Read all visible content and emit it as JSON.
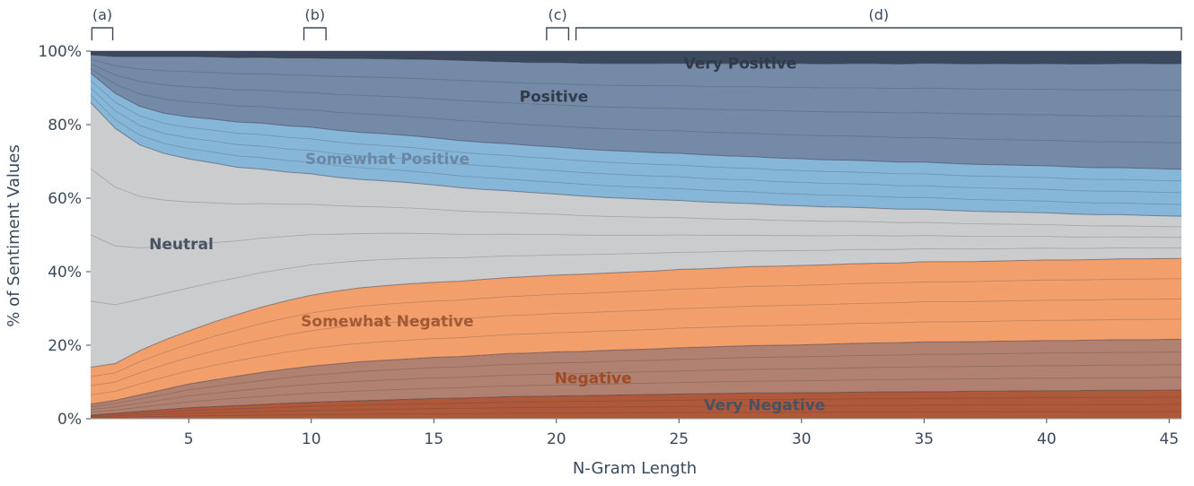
{
  "chart_data": {
    "type": "area",
    "stacked": true,
    "normalized": true,
    "xlabel": "N-Gram Length",
    "ylabel": "% of Sentiment Values",
    "x_ticks": [
      5,
      10,
      15,
      20,
      25,
      30,
      35,
      40,
      45
    ],
    "y_ticks": [
      "0%",
      "20%",
      "40%",
      "60%",
      "80%",
      "100%"
    ],
    "xlim": [
      1,
      45.5
    ],
    "ylim": [
      0,
      100
    ],
    "x": [
      1,
      2,
      3,
      4,
      5,
      6,
      7,
      8,
      9,
      10,
      11,
      12,
      13,
      14,
      15,
      16,
      17,
      18,
      19,
      20,
      21,
      22,
      23,
      24,
      25,
      26,
      27,
      28,
      29,
      30,
      31,
      32,
      33,
      34,
      35,
      36,
      37,
      38,
      39,
      40,
      41,
      42,
      43,
      44,
      45,
      45.5
    ],
    "series": [
      {
        "name": "Very Negative",
        "color": "#b0583a",
        "label_color": "#4a5160",
        "values": [
          1,
          1.5,
          2,
          2.5,
          3,
          3.3,
          3.6,
          3.9,
          4.2,
          4.5,
          4.7,
          4.9,
          5.1,
          5.3,
          5.5,
          5.6,
          5.8,
          6,
          6.1,
          6.2,
          6.3,
          6.4,
          6.5,
          6.6,
          6.7,
          6.8,
          6.9,
          7,
          7,
          7.1,
          7.1,
          7.2,
          7.3,
          7.3,
          7.4,
          7.4,
          7.5,
          7.5,
          7.6,
          7.6,
          7.6,
          7.7,
          7.7,
          7.7,
          7.8,
          7.8
        ]
      },
      {
        "name": "Negative",
        "color": "#b08070",
        "label_color": "#a04a25",
        "values": [
          3,
          3.5,
          4.5,
          5.5,
          6.5,
          7.3,
          8,
          8.7,
          9.3,
          9.8,
          10.2,
          10.6,
          10.8,
          11,
          11.2,
          11.3,
          11.5,
          11.7,
          11.8,
          12,
          12,
          12.2,
          12.3,
          12.4,
          12.6,
          12.7,
          12.8,
          12.9,
          13,
          13,
          13.2,
          13.3,
          13.3,
          13.4,
          13.5,
          13.5,
          13.5,
          13.6,
          13.6,
          13.7,
          13.7,
          13.7,
          13.8,
          13.8,
          13.8,
          13.8
        ]
      },
      {
        "name": "Somewhat Negative",
        "color": "#f29f6c",
        "label_color": "#a05a35",
        "values": [
          10,
          10,
          12,
          13.5,
          14.5,
          15.8,
          16.8,
          17.8,
          18.6,
          19.3,
          19.8,
          20.1,
          20.3,
          20.4,
          20.4,
          20.5,
          20.6,
          20.7,
          20.8,
          20.9,
          21,
          21,
          21.1,
          21.2,
          21.3,
          21.3,
          21.4,
          21.5,
          21.5,
          21.6,
          21.6,
          21.7,
          21.7,
          21.7,
          21.8,
          21.8,
          21.8,
          21.8,
          21.9,
          21.9,
          21.9,
          21.9,
          22,
          22,
          22,
          22
        ]
      },
      {
        "name": "Neutral",
        "color": "#cbcccd",
        "label_color": "#4a5160",
        "values": [
          72,
          64,
          56,
          51,
          47,
          43.5,
          40,
          37.5,
          35,
          33,
          31,
          29.5,
          28.5,
          27.5,
          26.5,
          25.5,
          24.5,
          23.6,
          22.8,
          22,
          21.3,
          20.6,
          20,
          19.4,
          18.8,
          18.2,
          17.6,
          17.1,
          16.6,
          16.2,
          15.8,
          15.4,
          15,
          14.6,
          14.3,
          14,
          13.7,
          13.4,
          13.1,
          12.8,
          12.5,
          12.2,
          12,
          11.8,
          11.6,
          11.5
        ]
      },
      {
        "name": "Somewhat Positive",
        "color": "#86b6d8",
        "label_color": "#6a87a3",
        "values": [
          8,
          9.5,
          10.5,
          11,
          11.5,
          12,
          12.3,
          12.5,
          12.6,
          12.7,
          12.8,
          12.8,
          12.8,
          12.8,
          12.8,
          12.8,
          12.8,
          12.8,
          12.8,
          12.8,
          12.8,
          12.8,
          12.8,
          12.8,
          12.8,
          12.8,
          12.8,
          12.8,
          12.8,
          12.8,
          12.8,
          12.8,
          12.8,
          12.8,
          12.8,
          12.8,
          12.8,
          12.8,
          12.8,
          12.8,
          12.8,
          12.8,
          12.8,
          12.8,
          12.8,
          12.8
        ]
      },
      {
        "name": "Positive",
        "color": "#748aa6",
        "label_color": "#2f3a4a",
        "values": [
          5,
          10,
          13.5,
          15.5,
          16.5,
          17,
          17.5,
          17.9,
          18.4,
          18.8,
          19.5,
          20.1,
          20.4,
          20.8,
          21.3,
          21.8,
          22.1,
          22.3,
          22.6,
          23,
          23.3,
          23.6,
          23.9,
          24.2,
          24.5,
          24.8,
          25.1,
          25.4,
          25.7,
          25.9,
          26.1,
          26.3,
          26.5,
          26.7,
          26.9,
          27.1,
          27.3,
          27.5,
          27.6,
          27.8,
          28,
          28.2,
          28.3,
          28.5,
          28.6,
          28.7
        ]
      },
      {
        "name": "Very Positive",
        "color": "#3c4a60",
        "label_color": "#2f3a4a",
        "values": [
          1,
          1.5,
          1.5,
          1.5,
          1.5,
          1.6,
          1.8,
          1.7,
          1.9,
          1.9,
          2,
          2,
          2.1,
          2.2,
          2.3,
          2.5,
          2.7,
          2.9,
          3.1,
          3.1,
          3.3,
          3.4,
          3.4,
          3.4,
          3.3,
          3.4,
          3.4,
          3.3,
          3.4,
          3.4,
          3.5,
          3.4,
          3.4,
          3.5,
          3.3,
          3.4,
          3.5,
          3.4,
          3.5,
          3.4,
          3.5,
          3.5,
          3.4,
          3.4,
          3.5,
          3.4
        ]
      }
    ],
    "brackets": [
      {
        "label": "(a)",
        "from": 1.05,
        "to": 1.9
      },
      {
        "label": "(b)",
        "from": 9.7,
        "to": 10.6
      },
      {
        "label": "(c)",
        "from": 19.6,
        "to": 20.5
      },
      {
        "label": "(d)",
        "from": 20.8,
        "to": 45.5
      }
    ],
    "series_labels": [
      {
        "series": "Very Positive",
        "text": "Very Positive",
        "x": 27.5,
        "y": 96.5
      },
      {
        "series": "Positive",
        "text": "Positive",
        "x": 19.9,
        "y": 87.5
      },
      {
        "series": "Somewhat Positive",
        "text": "Somewhat Positive",
        "x": 13.1,
        "y": 70.5
      },
      {
        "series": "Neutral",
        "text": "Neutral",
        "x": 4.7,
        "y": 47.3
      },
      {
        "series": "Somewhat Negative",
        "text": "Somewhat Negative",
        "x": 13.1,
        "y": 26.4
      },
      {
        "series": "Negative",
        "text": "Negative",
        "x": 21.5,
        "y": 10.9
      },
      {
        "series": "Very Negative",
        "text": "Very Negative",
        "x": 28.5,
        "y": 3.5
      }
    ],
    "grid": false,
    "legend": "none"
  }
}
